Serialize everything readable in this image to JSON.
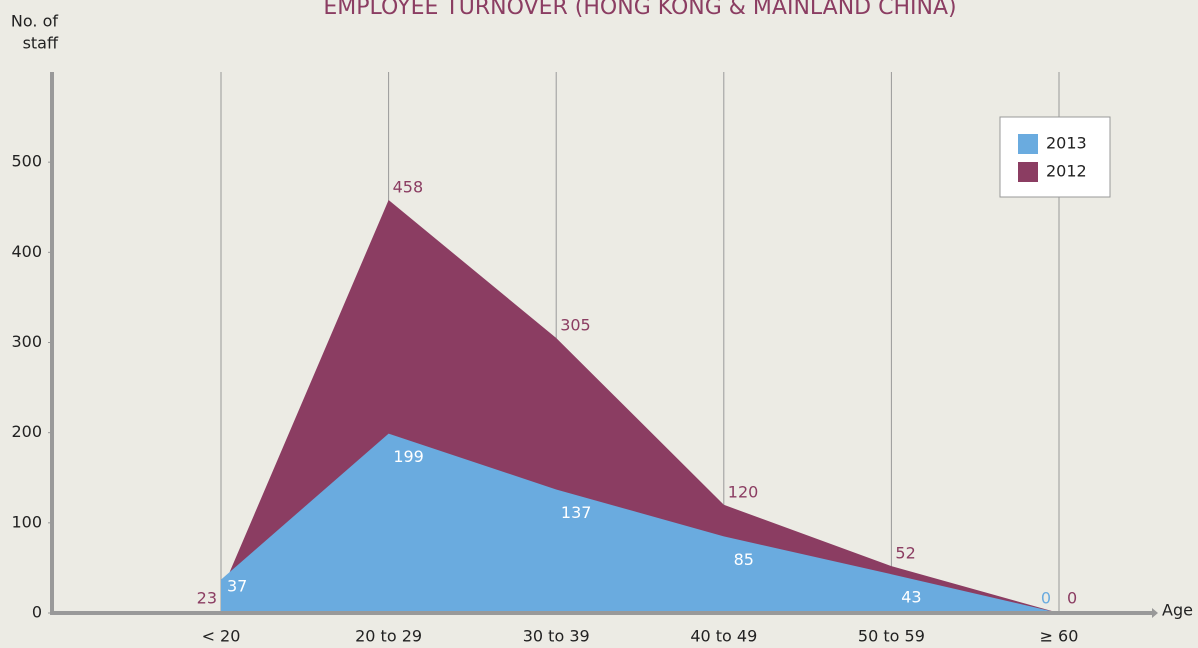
{
  "chart_data": {
    "type": "area",
    "title": "EMPLOYEE TURNOVER (HONG KONG & MAINLAND CHINA)",
    "y_label": [
      "No. of",
      "staff"
    ],
    "x_label": "Age",
    "categories": [
      "< 20",
      "20 to 29",
      "30 to 39",
      "40 to 49",
      "50 to 59",
      "≥ 60"
    ],
    "series": [
      {
        "name": "2013",
        "color": "#6aabdf",
        "values": [
          37,
          199,
          137,
          85,
          43,
          0
        ]
      },
      {
        "name": "2012",
        "color": "#8b3d62",
        "values": [
          23,
          458,
          305,
          120,
          52,
          0
        ]
      }
    ],
    "ylim": [
      0,
      600
    ],
    "yticks": [
      0,
      100,
      200,
      300,
      400,
      500
    ],
    "legend": "upper right"
  }
}
